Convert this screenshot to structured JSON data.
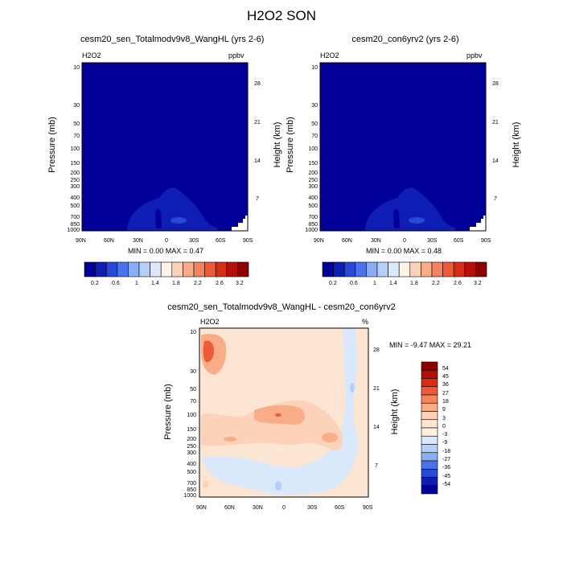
{
  "figure_title": "H2O2 SON",
  "chart_data": [
    {
      "type": "contour",
      "title": "cesm20_sen_Totalmodv9v8_WangHL (yrs 2-6)",
      "variable": "H2O2",
      "units": "ppbv",
      "xlabel": "",
      "ylabel": "Pressure (mb)",
      "ylabel_right": "Height (km)",
      "x_ticks": [
        "90N",
        "60N",
        "30N",
        "0",
        "30S",
        "60S",
        "90S"
      ],
      "y_ticks": [
        "10",
        "30",
        "50",
        "70",
        "100",
        "150",
        "200",
        "250",
        "300",
        "400",
        "500",
        "700",
        "850",
        "1000"
      ],
      "height_ticks": [
        "28",
        "21",
        "14",
        "7"
      ],
      "min": "0.00",
      "max": "0.47",
      "stats_text": "MIN =   0.00  MAX =   0.47",
      "colorbar_labels": [
        "0.2",
        "0.6",
        "1",
        "1.4",
        "1.8",
        "2.2",
        "2.6",
        "3.2"
      ],
      "colors": [
        "#000099",
        "#0e1eb4",
        "#2749d6",
        "#4a74e8",
        "#8aaef4",
        "#b5cff8",
        "#d9e8fb",
        "#fff4e8",
        "#fcd3b8",
        "#f8ad88",
        "#f58360",
        "#ef5a38",
        "#d62d14",
        "#b30f08",
        "#8c0000"
      ]
    },
    {
      "type": "contour",
      "title": "cesm20_con6yrv2 (yrs 2-6)",
      "variable": "H2O2",
      "units": "ppbv",
      "xlabel": "",
      "ylabel": "Pressure (mb)",
      "ylabel_right": "Height (km)",
      "x_ticks": [
        "90N",
        "60N",
        "30N",
        "0",
        "30S",
        "60S",
        "90S"
      ],
      "y_ticks": [
        "10",
        "30",
        "50",
        "70",
        "100",
        "150",
        "200",
        "250",
        "300",
        "400",
        "500",
        "700",
        "850",
        "1000"
      ],
      "height_ticks": [
        "28",
        "21",
        "14",
        "7"
      ],
      "min": "0.00",
      "max": "0.48",
      "stats_text": "MIN =   0.00  MAX =   0.48",
      "colorbar_labels": [
        "0.2",
        "0.6",
        "1",
        "1.4",
        "1.8",
        "2.2",
        "2.6",
        "3.2"
      ],
      "colors": [
        "#000099",
        "#0e1eb4",
        "#2749d6",
        "#4a74e8",
        "#8aaef4",
        "#b5cff8",
        "#d9e8fb",
        "#fff4e8",
        "#fcd3b8",
        "#f8ad88",
        "#f58360",
        "#ef5a38",
        "#d62d14",
        "#b30f08",
        "#8c0000"
      ]
    },
    {
      "type": "contour",
      "title": "cesm20_sen_Totalmodv9v8_WangHL - cesm20_con6yrv2",
      "variable": "H2O2",
      "units": "%",
      "xlabel": "",
      "ylabel": "Pressure (mb)",
      "ylabel_right": "Height (km)",
      "x_ticks": [
        "90N",
        "60N",
        "30N",
        "0",
        "30S",
        "60S",
        "90S"
      ],
      "y_ticks": [
        "10",
        "30",
        "50",
        "70",
        "100",
        "150",
        "200",
        "250",
        "300",
        "400",
        "500",
        "700",
        "850",
        "1000"
      ],
      "height_ticks": [
        "28",
        "21",
        "14",
        "7"
      ],
      "min": "-9.47",
      "max": "29.21",
      "stats_text": "MIN =  -9.47  MAX =  29.21",
      "colorbar_labels": [
        "54",
        "45",
        "36",
        "27",
        "18",
        "9",
        "3",
        "0",
        "-3",
        "-9",
        "-18",
        "-27",
        "-36",
        "-45",
        "-54"
      ],
      "colors": [
        "#8c0000",
        "#b30f08",
        "#d62d14",
        "#ef5a38",
        "#f58360",
        "#f8ad88",
        "#fcd3b8",
        "#fde5d3",
        "#ffefe1",
        "#d9e8fb",
        "#b5cff8",
        "#8aaef4",
        "#4a74e8",
        "#2749d6",
        "#0e1eb4",
        "#000099"
      ]
    }
  ]
}
